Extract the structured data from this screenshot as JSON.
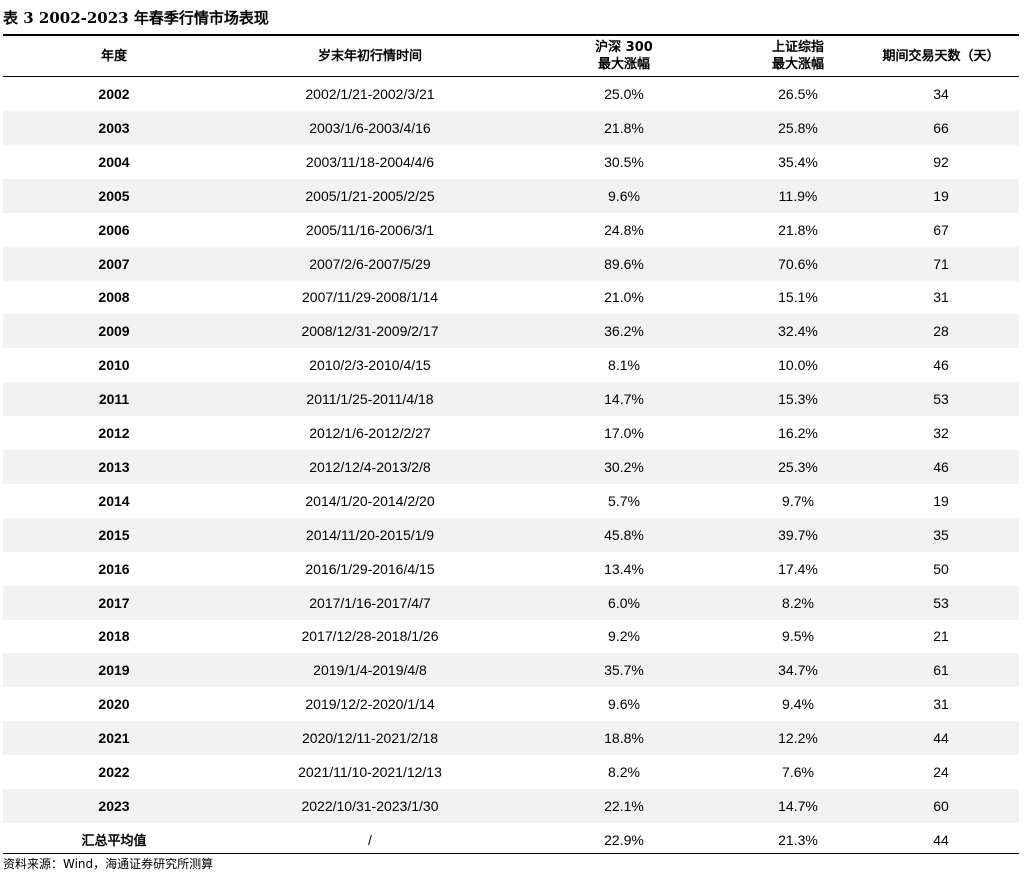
{
  "title": "表 3  2002-2023 年春季行情市场表现",
  "headers": {
    "year": "年度",
    "period": "岁末年初行情时间",
    "hs300_line1": "沪深 300",
    "hs300_line2": "最大涨幅",
    "sz_line1": "上证综指",
    "sz_line2": "最大涨幅",
    "days": "期间交易天数（天）"
  },
  "rows": [
    {
      "year": "2002",
      "period": "2002/1/21-2002/3/21",
      "hs300": "25.0%",
      "sz": "26.5%",
      "days": "34"
    },
    {
      "year": "2003",
      "period": "2003/1/6-2003/4/16",
      "hs300": "21.8%",
      "sz": "25.8%",
      "days": "66"
    },
    {
      "year": "2004",
      "period": "2003/11/18-2004/4/6",
      "hs300": "30.5%",
      "sz": "35.4%",
      "days": "92"
    },
    {
      "year": "2005",
      "period": "2005/1/21-2005/2/25",
      "hs300": "9.6%",
      "sz": "11.9%",
      "days": "19"
    },
    {
      "year": "2006",
      "period": "2005/11/16-2006/3/1",
      "hs300": "24.8%",
      "sz": "21.8%",
      "days": "67"
    },
    {
      "year": "2007",
      "period": "2007/2/6-2007/5/29",
      "hs300": "89.6%",
      "sz": "70.6%",
      "days": "71"
    },
    {
      "year": "2008",
      "period": "2007/11/29-2008/1/14",
      "hs300": "21.0%",
      "sz": "15.1%",
      "days": "31"
    },
    {
      "year": "2009",
      "period": "2008/12/31-2009/2/17",
      "hs300": "36.2%",
      "sz": "32.4%",
      "days": "28"
    },
    {
      "year": "2010",
      "period": "2010/2/3-2010/4/15",
      "hs300": "8.1%",
      "sz": "10.0%",
      "days": "46"
    },
    {
      "year": "2011",
      "period": "2011/1/25-2011/4/18",
      "hs300": "14.7%",
      "sz": "15.3%",
      "days": "53"
    },
    {
      "year": "2012",
      "period": "2012/1/6-2012/2/27",
      "hs300": "17.0%",
      "sz": "16.2%",
      "days": "32"
    },
    {
      "year": "2013",
      "period": "2012/12/4-2013/2/8",
      "hs300": "30.2%",
      "sz": "25.3%",
      "days": "46"
    },
    {
      "year": "2014",
      "period": "2014/1/20-2014/2/20",
      "hs300": "5.7%",
      "sz": "9.7%",
      "days": "19"
    },
    {
      "year": "2015",
      "period": "2014/11/20-2015/1/9",
      "hs300": "45.8%",
      "sz": "39.7%",
      "days": "35"
    },
    {
      "year": "2016",
      "period": "2016/1/29-2016/4/15",
      "hs300": "13.4%",
      "sz": "17.4%",
      "days": "50"
    },
    {
      "year": "2017",
      "period": "2017/1/16-2017/4/7",
      "hs300": "6.0%",
      "sz": "8.2%",
      "days": "53"
    },
    {
      "year": "2018",
      "period": "2017/12/28-2018/1/26",
      "hs300": "9.2%",
      "sz": "9.5%",
      "days": "21"
    },
    {
      "year": "2019",
      "period": "2019/1/4-2019/4/8",
      "hs300": "35.7%",
      "sz": "34.7%",
      "days": "61"
    },
    {
      "year": "2020",
      "period": "2019/12/2-2020/1/14",
      "hs300": "9.6%",
      "sz": "9.4%",
      "days": "31"
    },
    {
      "year": "2021",
      "period": "2020/12/11-2021/2/18",
      "hs300": "18.8%",
      "sz": "12.2%",
      "days": "44"
    },
    {
      "year": "2022",
      "period": "2021/11/10-2021/12/13",
      "hs300": "8.2%",
      "sz": "7.6%",
      "days": "24"
    },
    {
      "year": "2023",
      "period": "2022/10/31-2023/1/30",
      "hs300": "22.1%",
      "sz": "14.7%",
      "days": "60"
    }
  ],
  "summary": {
    "label": "汇总平均值",
    "period": "/",
    "hs300": "22.9%",
    "sz": "21.3%",
    "days": "44"
  },
  "source": "资料来源：Wind，海通证券研究所测算",
  "colors": {
    "shade": "#f2f2f2",
    "rule": "#000000"
  }
}
